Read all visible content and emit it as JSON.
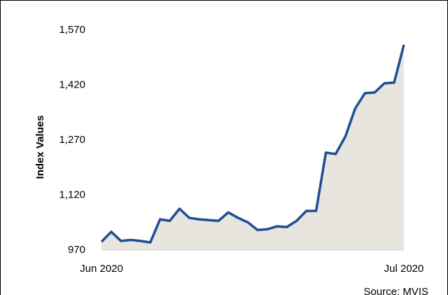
{
  "chart_data": {
    "type": "line",
    "y_label": "Index Values",
    "source": "Source: MVIS",
    "categories": [
      "Jun 2020",
      null,
      null,
      null,
      null,
      null,
      null,
      null,
      null,
      null,
      null,
      null,
      null,
      null,
      null,
      null,
      null,
      null,
      null,
      null,
      null,
      null,
      null,
      null,
      null,
      null,
      null,
      null,
      null,
      null,
      null,
      "Jul 2020"
    ],
    "series": [
      {
        "name": "Index",
        "color": "#1f4e96",
        "fill": "#e8e4de",
        "values": [
          993,
          1020,
          995,
          998,
          995,
          991,
          1054,
          1050,
          1083,
          1058,
          1054,
          1052,
          1050,
          1073,
          1058,
          1046,
          1025,
          1027,
          1035,
          1033,
          1050,
          1077,
          1077,
          1236,
          1232,
          1280,
          1356,
          1398,
          1400,
          1425,
          1427,
          1530
        ]
      }
    ],
    "ylim": [
      970,
      1570
    ],
    "yticks": [
      970,
      {
        "value": 1120,
        "label": "1,120"
      },
      {
        "value": 1270,
        "label": "1,270"
      },
      {
        "value": 1420,
        "label": "1,420"
      },
      {
        "value": 1570,
        "label": "1,570"
      }
    ]
  }
}
